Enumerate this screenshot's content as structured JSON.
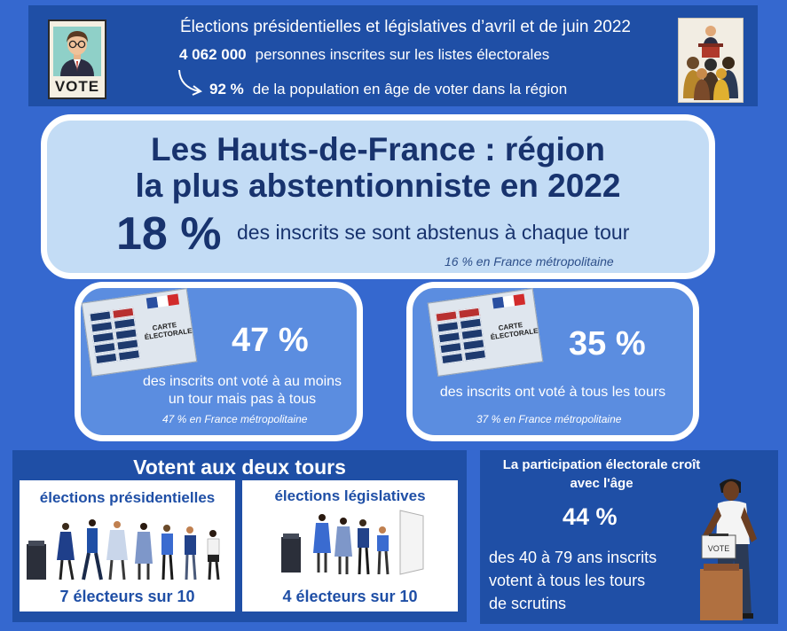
{
  "header": {
    "title": "Élections présidentielles et législatives d’avril et de juin 2022",
    "registered_value": "4 062 000",
    "registered_text": "personnes inscrites sur les listes électorales",
    "population_value": "92 %",
    "population_text": "de la population en âge de voter dans la région",
    "vote_card_label": "VOTE"
  },
  "main": {
    "title_line1": "Les Hauts-de-France : région",
    "title_line2": "la plus abstentionniste en 2022",
    "percent": "18 %",
    "text": "des inscrits se sont abstenus à chaque tour",
    "note": "16 % en France métropolitaine"
  },
  "card_left": {
    "percent": "47 %",
    "text_line1": "des inscrits ont voté à au moins",
    "text_line2": "un tour mais pas à tous",
    "note": "47 % en France métropolitaine",
    "card_label": "CARTE ÉLECTORALE"
  },
  "card_right": {
    "percent": "35 %",
    "text": "des inscrits ont voté à tous les tours",
    "note": "37 % en France métropolitaine",
    "card_label": "CARTE ÉLECTORALE"
  },
  "both_rounds": {
    "title": "Votent aux deux tours",
    "presidential": {
      "title": "élections présidentielles",
      "count": "7 électeurs sur 10"
    },
    "legislative": {
      "title": "élections législatives",
      "count": "4 électeurs sur 10"
    }
  },
  "age": {
    "title_line1": "La participation électorale croît",
    "title_line2": "avec l'âge",
    "percent": "44 %",
    "text_line1": "des 40 à 79 ans inscrits",
    "text_line2": "votent à tous les tours",
    "text_line3": "de scrutins",
    "ballot_box_label": "VOTE"
  },
  "colors": {
    "background": "#3568cf",
    "dark_panel": "#1f4fa6",
    "main_box": "#c3dcf5",
    "card": "#5b8de0",
    "title_navy": "#18336e"
  }
}
